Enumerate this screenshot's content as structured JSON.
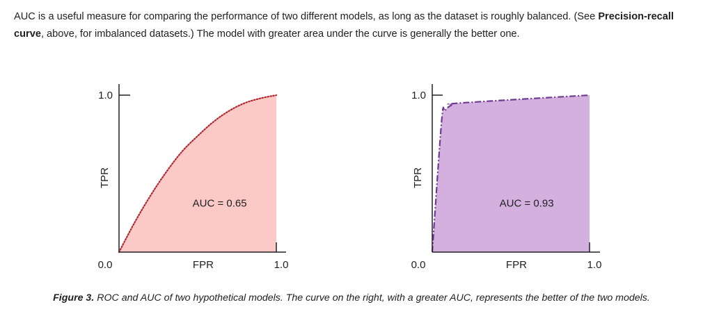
{
  "paragraph": {
    "text_before": "AUC is a useful measure for comparing the performance of two different models, as long as the dataset is roughly balanced. (See ",
    "link": "Precision-recall curve",
    "text_after": ", above, for imbalanced datasets.) The model with greater area under the curve is generally the better one."
  },
  "chart_data": [
    {
      "type": "area",
      "xlabel": "FPR",
      "ylabel": "TPR",
      "xlim": [
        0,
        1
      ],
      "ylim": [
        0,
        1
      ],
      "x_ticks": [
        "0.0",
        "1.0"
      ],
      "y_ticks": [
        "1.0"
      ],
      "annotation": "AUC = 0.65",
      "line_style": "dotted",
      "line_color": "#b3262f",
      "fill_color": "#fbc9c6",
      "grid": false,
      "points": [
        [
          0,
          0
        ],
        [
          0.1,
          0.19
        ],
        [
          0.2,
          0.36
        ],
        [
          0.3,
          0.51
        ],
        [
          0.4,
          0.64
        ],
        [
          0.5,
          0.74
        ],
        [
          0.6,
          0.83
        ],
        [
          0.7,
          0.9
        ],
        [
          0.8,
          0.95
        ],
        [
          0.9,
          0.98
        ],
        [
          1,
          1
        ]
      ]
    },
    {
      "type": "area",
      "xlabel": "FPR",
      "ylabel": "TPR",
      "xlim": [
        0,
        1
      ],
      "ylim": [
        0,
        1
      ],
      "x_ticks": [
        "0.0",
        "1.0"
      ],
      "y_ticks": [
        "1.0"
      ],
      "annotation": "AUC = 0.93",
      "line_style": "dash-dot",
      "line_color": "#6f3a8f",
      "fill_color": "#d4b0de",
      "grid": false,
      "points": [
        [
          0,
          0
        ],
        [
          0.06,
          0.84
        ],
        [
          0.08,
          0.9
        ],
        [
          0.12,
          0.935
        ],
        [
          0.18,
          0.95
        ],
        [
          1,
          1
        ]
      ]
    }
  ],
  "caption": {
    "label": "Figure 3.",
    "text": " ROC and AUC of two hypothetical models. The curve on the right, with a greater AUC, represents the better of the two models."
  }
}
